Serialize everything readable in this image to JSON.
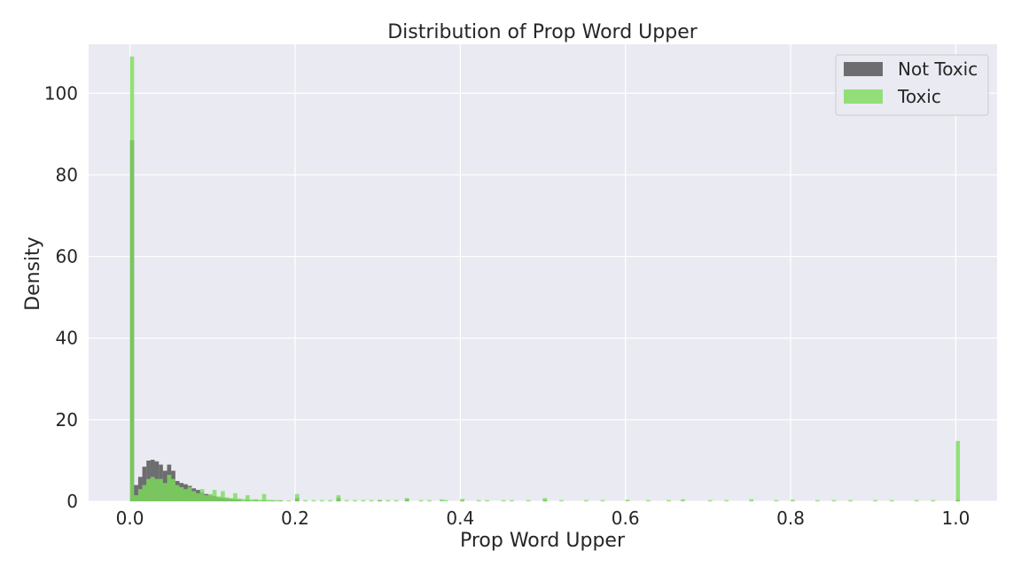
{
  "chart_data": {
    "type": "histogram",
    "title": "Distribution of Prop Word Upper",
    "xlabel": "Prop Word Upper",
    "ylabel": "Density",
    "xlim": [
      -0.05,
      1.05
    ],
    "ylim": [
      0,
      112
    ],
    "xticks": [
      0.0,
      0.2,
      0.4,
      0.6,
      0.8,
      1.0
    ],
    "xtick_labels": [
      "0.0",
      "0.2",
      "0.4",
      "0.6",
      "0.8",
      "1.0"
    ],
    "yticks": [
      0,
      20,
      40,
      60,
      80,
      100
    ],
    "ytick_labels": [
      "0",
      "20",
      "40",
      "60",
      "80",
      "100"
    ],
    "grid": true,
    "legend": {
      "position": "top-right",
      "entries": [
        "Not Toxic",
        "Toxic"
      ]
    },
    "bin_width": 0.005,
    "series": [
      {
        "name": "Not Toxic",
        "color": "#4d4d4f",
        "opacity": 0.8,
        "bins": [
          [
            0.0,
            88.5
          ],
          [
            0.005,
            4.0
          ],
          [
            0.01,
            6.0
          ],
          [
            0.015,
            8.5
          ],
          [
            0.02,
            10.0
          ],
          [
            0.025,
            10.2
          ],
          [
            0.03,
            9.8
          ],
          [
            0.035,
            9.0
          ],
          [
            0.04,
            7.5
          ],
          [
            0.045,
            9.0
          ],
          [
            0.05,
            7.5
          ],
          [
            0.055,
            5.0
          ],
          [
            0.06,
            4.5
          ],
          [
            0.065,
            4.2
          ],
          [
            0.07,
            3.8
          ],
          [
            0.075,
            3.2
          ],
          [
            0.08,
            2.8
          ],
          [
            0.085,
            2.2
          ],
          [
            0.09,
            1.8
          ],
          [
            0.095,
            1.5
          ],
          [
            0.1,
            1.3
          ],
          [
            0.105,
            1.0
          ],
          [
            0.11,
            0.9
          ],
          [
            0.115,
            0.7
          ],
          [
            0.12,
            0.6
          ],
          [
            0.125,
            0.5
          ],
          [
            0.13,
            0.4
          ],
          [
            0.14,
            0.3
          ],
          [
            0.15,
            0.3
          ],
          [
            0.16,
            0.2
          ],
          [
            0.17,
            0.2
          ],
          [
            0.18,
            0.15
          ],
          [
            0.2,
            0.8
          ],
          [
            0.25,
            0.8
          ],
          [
            0.3,
            0.3
          ],
          [
            0.333,
            0.5
          ],
          [
            0.4,
            0.2
          ],
          [
            0.5,
            0.3
          ],
          [
            1.0,
            0.3
          ]
        ]
      },
      {
        "name": "Toxic",
        "color": "#7cdc5a",
        "opacity": 0.8,
        "bins": [
          [
            0.0,
            109.0
          ],
          [
            0.005,
            1.5
          ],
          [
            0.01,
            3.0
          ],
          [
            0.015,
            4.0
          ],
          [
            0.02,
            5.5
          ],
          [
            0.025,
            6.0
          ],
          [
            0.03,
            5.5
          ],
          [
            0.035,
            5.5
          ],
          [
            0.04,
            4.5
          ],
          [
            0.045,
            6.5
          ],
          [
            0.05,
            5.5
          ],
          [
            0.055,
            4.0
          ],
          [
            0.06,
            3.5
          ],
          [
            0.065,
            3.0
          ],
          [
            0.07,
            3.5
          ],
          [
            0.075,
            2.5
          ],
          [
            0.08,
            2.0
          ],
          [
            0.085,
            3.0
          ],
          [
            0.09,
            1.5
          ],
          [
            0.095,
            1.8
          ],
          [
            0.1,
            2.8
          ],
          [
            0.105,
            1.2
          ],
          [
            0.11,
            2.5
          ],
          [
            0.115,
            1.0
          ],
          [
            0.12,
            0.8
          ],
          [
            0.125,
            2.0
          ],
          [
            0.13,
            0.7
          ],
          [
            0.135,
            0.6
          ],
          [
            0.14,
            1.5
          ],
          [
            0.145,
            0.5
          ],
          [
            0.15,
            0.5
          ],
          [
            0.155,
            0.4
          ],
          [
            0.16,
            1.8
          ],
          [
            0.165,
            0.4
          ],
          [
            0.17,
            0.3
          ],
          [
            0.175,
            0.3
          ],
          [
            0.18,
            0.3
          ],
          [
            0.19,
            0.2
          ],
          [
            0.2,
            1.8
          ],
          [
            0.21,
            0.3
          ],
          [
            0.22,
            0.3
          ],
          [
            0.23,
            0.3
          ],
          [
            0.24,
            0.3
          ],
          [
            0.25,
            1.5
          ],
          [
            0.26,
            0.3
          ],
          [
            0.27,
            0.3
          ],
          [
            0.28,
            0.3
          ],
          [
            0.29,
            0.3
          ],
          [
            0.3,
            0.3
          ],
          [
            0.31,
            0.3
          ],
          [
            0.32,
            0.3
          ],
          [
            0.333,
            0.8
          ],
          [
            0.35,
            0.3
          ],
          [
            0.36,
            0.3
          ],
          [
            0.375,
            0.5
          ],
          [
            0.38,
            0.3
          ],
          [
            0.4,
            0.6
          ],
          [
            0.42,
            0.3
          ],
          [
            0.43,
            0.3
          ],
          [
            0.45,
            0.3
          ],
          [
            0.46,
            0.3
          ],
          [
            0.48,
            0.3
          ],
          [
            0.5,
            0.8
          ],
          [
            0.52,
            0.3
          ],
          [
            0.55,
            0.3
          ],
          [
            0.57,
            0.3
          ],
          [
            0.6,
            0.4
          ],
          [
            0.625,
            0.3
          ],
          [
            0.65,
            0.3
          ],
          [
            0.667,
            0.5
          ],
          [
            0.7,
            0.3
          ],
          [
            0.72,
            0.3
          ],
          [
            0.75,
            0.5
          ],
          [
            0.78,
            0.3
          ],
          [
            0.8,
            0.4
          ],
          [
            0.83,
            0.3
          ],
          [
            0.85,
            0.3
          ],
          [
            0.87,
            0.3
          ],
          [
            0.9,
            0.3
          ],
          [
            0.92,
            0.3
          ],
          [
            0.95,
            0.3
          ],
          [
            0.97,
            0.3
          ],
          [
            1.0,
            14.8
          ]
        ]
      }
    ]
  }
}
